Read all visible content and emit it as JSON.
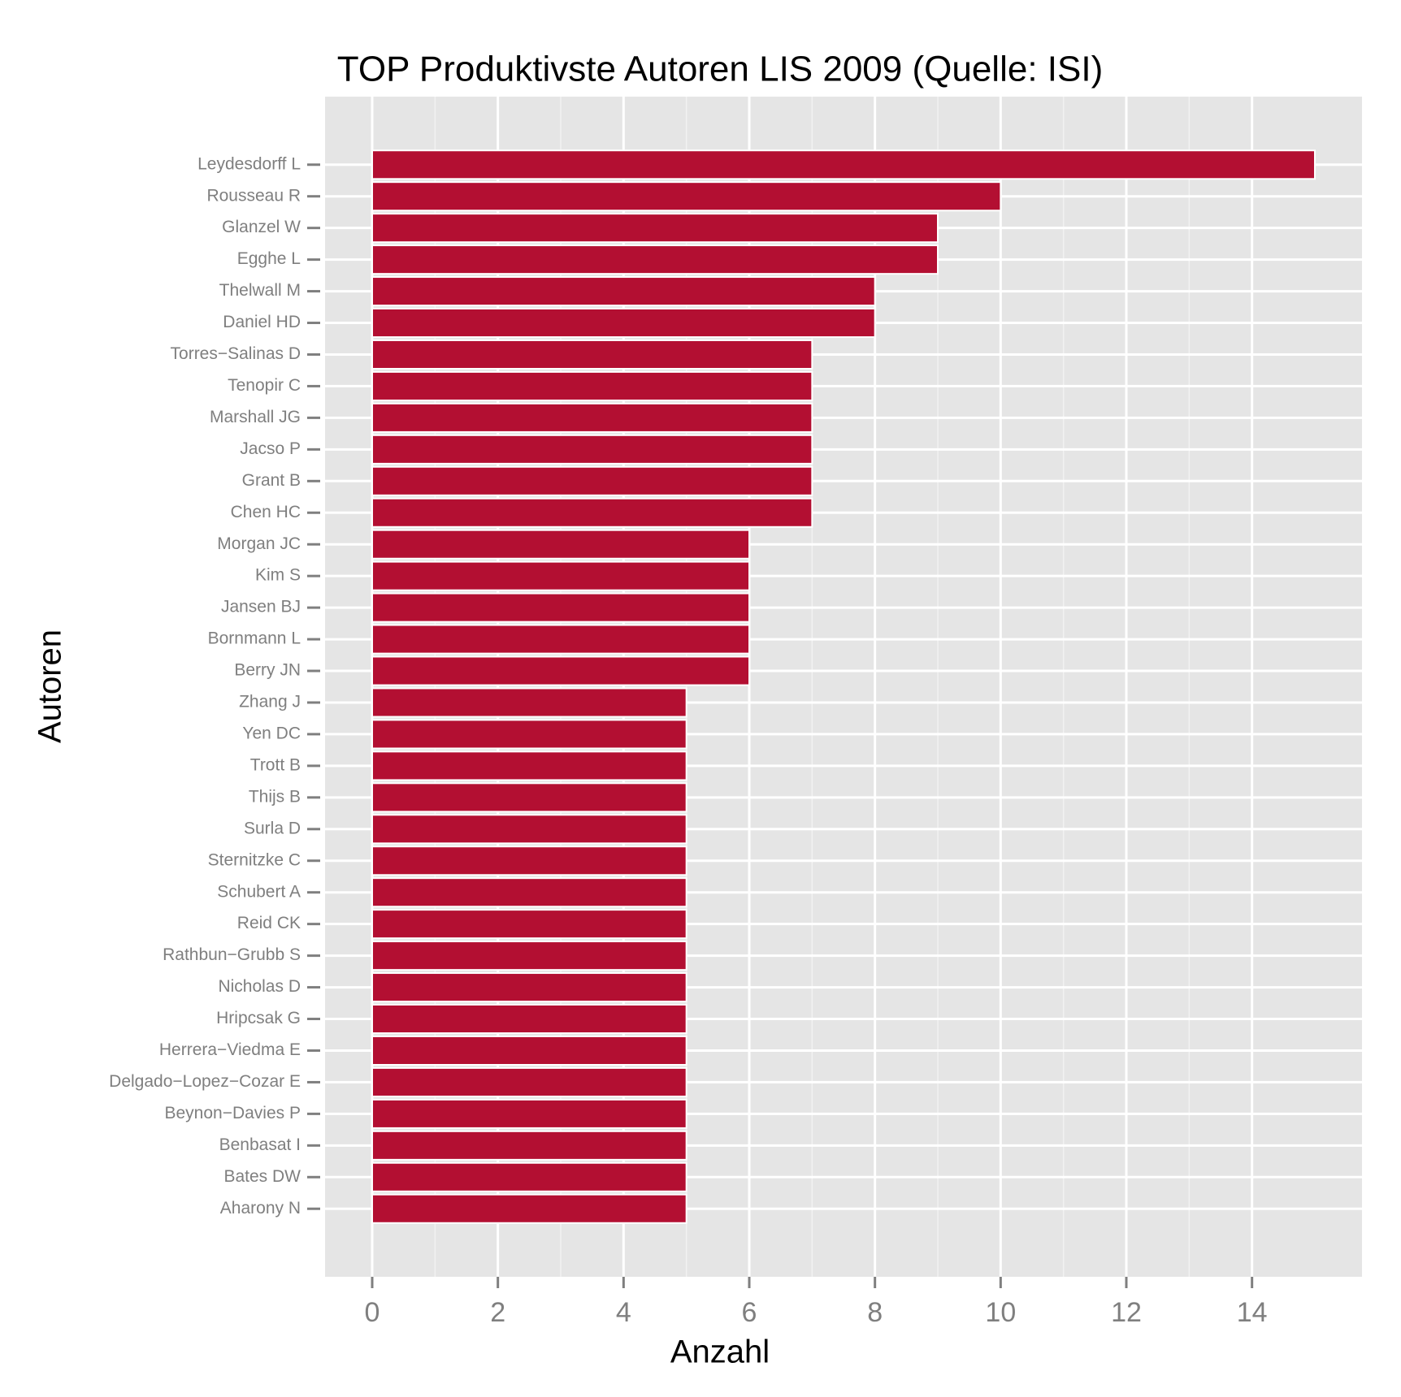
{
  "chart_data": {
    "type": "bar",
    "orientation": "horizontal",
    "title": "TOP Produktivste Autoren LIS 2009 (Quelle: ISI)",
    "x_label": "Anzahl",
    "y_label": "Autoren",
    "categories": [
      "Leydesdorff L",
      "Rousseau R",
      "Glanzel W",
      "Egghe L",
      "Thelwall M",
      "Daniel HD",
      "Torres−Salinas D",
      "Tenopir C",
      "Marshall JG",
      "Jacso P",
      "Grant B",
      "Chen HC",
      "Morgan JC",
      "Kim S",
      "Jansen BJ",
      "Bornmann L",
      "Berry JN",
      "Zhang J",
      "Yen DC",
      "Trott B",
      "Thijs B",
      "Surla D",
      "Sternitzke C",
      "Schubert A",
      "Reid CK",
      "Rathbun−Grubb S",
      "Nicholas D",
      "Hripcsak G",
      "Herrera−Viedma E",
      "Delgado−Lopez−Cozar E",
      "Beynon−Davies P",
      "Benbasat I",
      "Bates DW",
      "Aharony N"
    ],
    "values": [
      15,
      10,
      9,
      9,
      8,
      8,
      7,
      7,
      7,
      7,
      7,
      7,
      6,
      6,
      6,
      6,
      6,
      5,
      5,
      5,
      5,
      5,
      5,
      5,
      5,
      5,
      5,
      5,
      5,
      5,
      5,
      5,
      5,
      5
    ],
    "color": "#b30f32",
    "xlim": [
      -0.75,
      15.75
    ],
    "xticks": [
      0,
      2,
      4,
      6,
      8,
      10,
      12,
      14
    ],
    "grid": true
  }
}
